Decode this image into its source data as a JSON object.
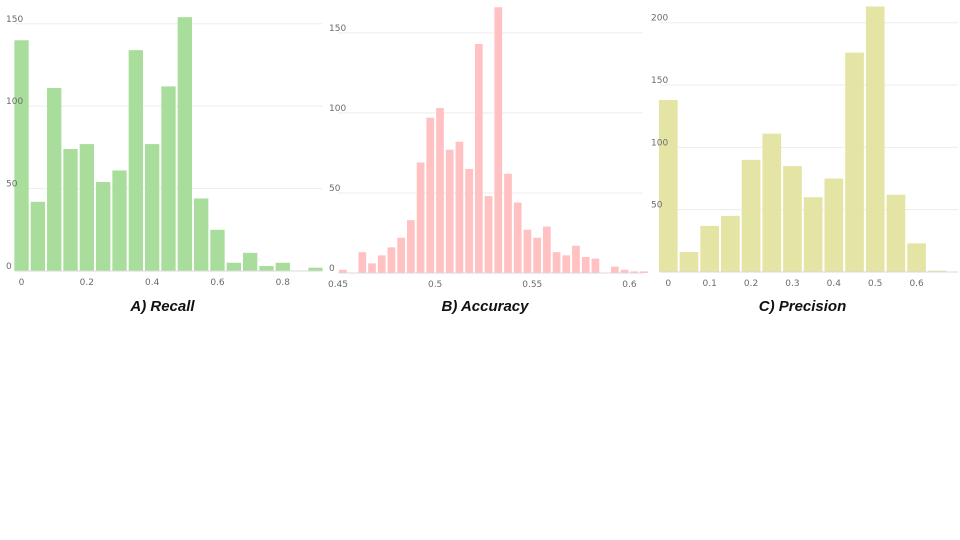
{
  "chart_data": [
    {
      "type": "bar",
      "caption": "A) Recall",
      "color": "#a8dd9c",
      "xlim": [
        -0.02,
        0.92
      ],
      "ylim": [
        0,
        162
      ],
      "xticks": [
        0,
        0.2,
        0.4,
        0.6,
        0.8
      ],
      "xtick_labels": [
        "0",
        "0.2",
        "0.4",
        "0.6",
        "0.8"
      ],
      "yticks": [
        0,
        50,
        100,
        150
      ],
      "ytick_labels": [
        "0",
        "50",
        "100",
        "150"
      ],
      "bin_width": 0.05,
      "x": [
        0,
        0.05,
        0.1,
        0.15,
        0.2,
        0.25,
        0.3,
        0.35,
        0.4,
        0.45,
        0.5,
        0.55,
        0.6,
        0.65,
        0.7,
        0.75,
        0.8,
        0.85,
        0.9
      ],
      "values": [
        140,
        42,
        111,
        74,
        77,
        54,
        61,
        134,
        77,
        112,
        154,
        44,
        25,
        5,
        11,
        3,
        5,
        0,
        2
      ]
    },
    {
      "type": "bar",
      "caption": "B) Accuracy",
      "color": "#ffc1c1",
      "xlim": [
        0.45,
        0.607
      ],
      "ylim": [
        0,
        168
      ],
      "xticks": [
        0.45,
        0.5,
        0.55,
        0.6
      ],
      "xtick_labels": [
        "0.45",
        "0.5",
        "0.55",
        "0.6"
      ],
      "yticks": [
        0,
        50,
        100,
        150
      ],
      "ytick_labels": [
        "0",
        "50",
        "100",
        "150"
      ],
      "bin_width": 0.005,
      "x": [
        0.4525,
        0.4575,
        0.4625,
        0.4675,
        0.4725,
        0.4775,
        0.4825,
        0.4875,
        0.4925,
        0.4975,
        0.5025,
        0.5075,
        0.5125,
        0.5175,
        0.5225,
        0.5275,
        0.5325,
        0.5375,
        0.5425,
        0.5475,
        0.5525,
        0.5575,
        0.5625,
        0.5675,
        0.5725,
        0.5775,
        0.5825,
        0.5875,
        0.5925,
        0.5975,
        0.6025,
        0.6075
      ],
      "values": [
        2,
        0,
        13,
        6,
        11,
        16,
        22,
        33,
        69,
        97,
        103,
        77,
        82,
        65,
        143,
        48,
        166,
        62,
        44,
        27,
        22,
        29,
        13,
        11,
        17,
        10,
        9,
        0,
        4,
        2,
        1,
        1
      ]
    },
    {
      "type": "bar",
      "caption": "C) Precision",
      "color": "#e4e5a4",
      "xlim": [
        -0.02,
        0.7
      ],
      "ylim": [
        0,
        215
      ],
      "xticks": [
        0,
        0.1,
        0.2,
        0.3,
        0.4,
        0.5,
        0.6
      ],
      "xtick_labels": [
        "0",
        "0.1",
        "0.2",
        "0.3",
        "0.4",
        "0.5",
        "0.6"
      ],
      "yticks": [
        50,
        100,
        150,
        200
      ],
      "ytick_labels": [
        "50",
        "100",
        "150",
        "200"
      ],
      "bin_width": 0.05,
      "x": [
        0,
        0.05,
        0.1,
        0.15,
        0.2,
        0.25,
        0.3,
        0.35,
        0.4,
        0.45,
        0.5,
        0.55,
        0.6,
        0.65
      ],
      "values": [
        138,
        16,
        37,
        45,
        90,
        111,
        85,
        60,
        75,
        176,
        213,
        62,
        23,
        1
      ]
    }
  ]
}
